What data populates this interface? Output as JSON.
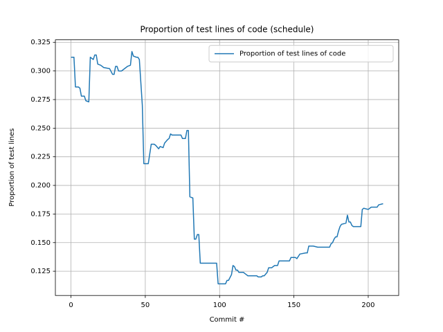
{
  "chart_data": {
    "type": "line",
    "title": "Proportion of test lines of code (schedule)",
    "xlabel": "Commit #",
    "ylabel": "Proportion of test lines",
    "x": [
      0,
      2,
      3,
      5,
      6,
      7,
      9,
      10,
      12,
      13,
      15,
      16,
      17,
      18,
      20,
      22,
      26,
      28,
      29,
      30,
      31,
      32,
      34,
      38,
      40,
      41,
      42,
      44,
      45,
      46,
      48,
      49,
      52,
      54,
      56,
      57,
      59,
      60,
      62,
      63,
      65,
      66,
      67,
      68,
      74,
      75,
      77,
      78,
      79,
      80,
      82,
      83,
      84,
      85,
      86,
      87,
      90,
      98,
      99,
      104,
      105,
      106,
      108,
      109,
      110,
      111,
      112,
      113,
      116,
      117,
      118,
      119,
      125,
      126,
      128,
      129,
      130,
      132,
      133,
      135,
      136,
      137,
      139,
      140,
      145,
      147,
      148,
      151,
      152,
      153,
      154,
      158,
      159,
      160,
      163,
      166,
      174,
      175,
      176,
      177,
      178,
      179,
      180,
      181,
      182,
      185,
      186,
      187,
      188,
      189,
      190,
      195,
      196,
      197,
      200,
      202,
      206,
      207,
      210
    ],
    "series": [
      {
        "name": "Proportion of test lines of code",
        "color": "#1f77b4",
        "values": [
          0.312,
          0.312,
          0.286,
          0.286,
          0.285,
          0.278,
          0.278,
          0.274,
          0.273,
          0.312,
          0.31,
          0.314,
          0.314,
          0.306,
          0.305,
          0.303,
          0.302,
          0.297,
          0.297,
          0.304,
          0.304,
          0.3,
          0.3,
          0.304,
          0.305,
          0.317,
          0.313,
          0.312,
          0.312,
          0.31,
          0.27,
          0.219,
          0.219,
          0.236,
          0.236,
          0.235,
          0.232,
          0.234,
          0.233,
          0.237,
          0.24,
          0.241,
          0.245,
          0.244,
          0.244,
          0.241,
          0.241,
          0.248,
          0.248,
          0.19,
          0.189,
          0.153,
          0.153,
          0.157,
          0.157,
          0.132,
          0.132,
          0.132,
          0.114,
          0.114,
          0.117,
          0.117,
          0.122,
          0.13,
          0.129,
          0.126,
          0.126,
          0.124,
          0.124,
          0.123,
          0.122,
          0.121,
          0.121,
          0.12,
          0.12,
          0.121,
          0.121,
          0.124,
          0.128,
          0.128,
          0.129,
          0.13,
          0.13,
          0.134,
          0.134,
          0.134,
          0.137,
          0.137,
          0.136,
          0.138,
          0.14,
          0.141,
          0.141,
          0.147,
          0.147,
          0.146,
          0.146,
          0.149,
          0.15,
          0.153,
          0.155,
          0.155,
          0.16,
          0.164,
          0.166,
          0.167,
          0.174,
          0.168,
          0.168,
          0.165,
          0.164,
          0.164,
          0.179,
          0.18,
          0.179,
          0.181,
          0.181,
          0.183,
          0.184
        ]
      }
    ],
    "xlim": [
      -10.5,
      220.5
    ],
    "ylim": [
      0.1038,
      0.3272
    ],
    "xticks": [
      0,
      50,
      100,
      150,
      200
    ],
    "yticks": [
      0.125,
      {
        "value": 0.15,
        "label": "0.150"
      },
      0.175,
      {
        "value": 0.2,
        "label": "0.200"
      },
      0.225,
      {
        "value": 0.25,
        "label": "0.250"
      },
      0.275,
      {
        "value": 0.3,
        "label": "0.300"
      },
      0.325
    ],
    "grid": true,
    "legend": "upper right"
  }
}
